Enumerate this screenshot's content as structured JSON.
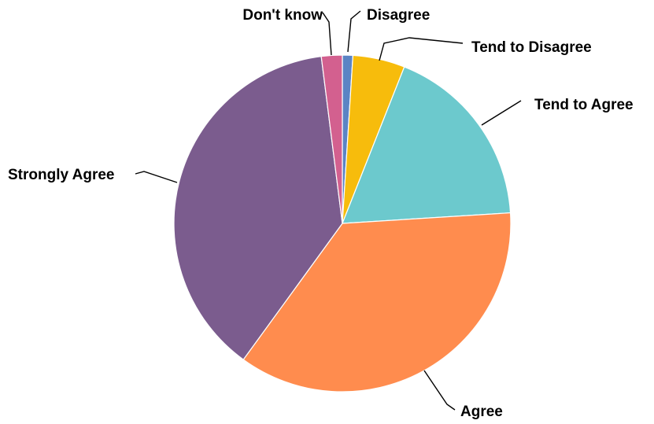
{
  "chart_data": {
    "type": "pie",
    "title": "",
    "categories": [
      "Disagree",
      "Tend to Disagree",
      "Tend to Agree",
      "Agree",
      "Strongly Agree",
      "Don't know"
    ],
    "values": [
      1,
      5,
      18,
      36,
      38,
      2
    ],
    "colors": [
      "#5B84C4",
      "#F7BC0C",
      "#6CC9CD",
      "#FF8C4E",
      "#7B5C8E",
      "#D3608F"
    ],
    "start_angle_deg": 0,
    "direction": "clockwise",
    "labels_shown": "category names",
    "legend": "none"
  }
}
